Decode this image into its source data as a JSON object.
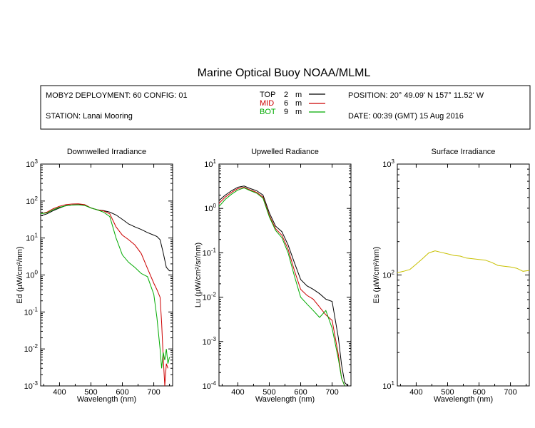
{
  "title": "Marine Optical Buoy NOAA/MLML",
  "info": {
    "deployment": "MOBY2 DEPLOYMENT: 60 CONFIG: 01",
    "station": "STATION: Lanai Mooring",
    "position": "POSITION: 20° 49.09' N   157° 11.52' W",
    "date": "DATE: 00:39 (GMT) 15 Aug 2016",
    "depths": [
      {
        "name": "TOP",
        "depth": "2",
        "unit": "m",
        "color": "#000000"
      },
      {
        "name": "MID",
        "depth": "6",
        "unit": "m",
        "color": "#cc0000"
      },
      {
        "name": "BOT",
        "depth": "9",
        "unit": "m",
        "color": "#00aa00"
      }
    ]
  },
  "chart_data": [
    {
      "type": "line",
      "title": "Downwelled Irradiance",
      "xlabel": "Wavelength (nm)",
      "ylabel_main": "Ed",
      "ylabel_unit": "(µW/cm²/nm)",
      "scale": "log",
      "xlim": [
        340,
        760
      ],
      "ylim_exp": [
        -3,
        3
      ],
      "xticks": [
        400,
        500,
        600,
        700
      ],
      "series": [
        {
          "name": "TOP",
          "color": "#000000",
          "x": [
            340,
            360,
            380,
            400,
            420,
            440,
            460,
            480,
            500,
            520,
            540,
            560,
            580,
            600,
            620,
            640,
            660,
            680,
            700,
            710,
            720,
            730,
            740,
            750,
            760
          ],
          "y": [
            40,
            45,
            55,
            65,
            75,
            78,
            80,
            78,
            65,
            58,
            55,
            50,
            42,
            32,
            24,
            20,
            17,
            14,
            12,
            11,
            9,
            4,
            1.6,
            1.3,
            1.3
          ]
        },
        {
          "name": "MID",
          "color": "#cc0000",
          "x": [
            340,
            360,
            380,
            400,
            420,
            440,
            460,
            480,
            500,
            520,
            540,
            560,
            580,
            600,
            620,
            640,
            660,
            680,
            700,
            710,
            720,
            725,
            730,
            735,
            740,
            745
          ],
          "y": [
            45,
            50,
            62,
            72,
            80,
            83,
            84,
            80,
            65,
            58,
            54,
            45,
            20,
            12,
            9,
            6.5,
            3.8,
            1.5,
            0.6,
            0.4,
            0.25,
            0.05,
            0.006,
            0.001,
            0.004,
            0.003
          ]
        },
        {
          "name": "BOT",
          "color": "#00aa00",
          "x": [
            340,
            360,
            380,
            400,
            420,
            440,
            460,
            480,
            500,
            520,
            540,
            560,
            580,
            600,
            620,
            640,
            660,
            680,
            700,
            710,
            720,
            725,
            730,
            735,
            740,
            745,
            750
          ],
          "y": [
            45,
            48,
            58,
            68,
            74,
            78,
            79,
            76,
            65,
            58,
            50,
            38,
            10,
            3.5,
            2.2,
            1.6,
            1.1,
            0.9,
            0.3,
            0.07,
            0.01,
            0.003,
            0.008,
            0.005,
            0.01,
            0.004,
            0.006
          ]
        }
      ]
    },
    {
      "type": "line",
      "title": "Upwelled Radiance",
      "xlabel": "Wavelength (nm)",
      "ylabel_main": "Lu",
      "ylabel_unit": "(µW/cm²/sr/nm)",
      "scale": "log",
      "xlim": [
        340,
        760
      ],
      "ylim_exp": [
        -4,
        1
      ],
      "xticks": [
        400,
        500,
        600,
        700
      ],
      "series": [
        {
          "name": "TOP",
          "color": "#000000",
          "x": [
            340,
            360,
            380,
            400,
            420,
            440,
            460,
            480,
            500,
            520,
            540,
            560,
            580,
            600,
            620,
            640,
            660,
            680,
            700,
            720,
            730,
            740,
            750
          ],
          "y": [
            1.5,
            2.0,
            2.5,
            3.0,
            3.2,
            2.8,
            2.5,
            2.0,
            0.8,
            0.4,
            0.3,
            0.15,
            0.06,
            0.025,
            0.018,
            0.015,
            0.012,
            0.009,
            0.008,
            0.0012,
            0.0003,
            0.00012,
            0.0001
          ]
        },
        {
          "name": "MID",
          "color": "#cc0000",
          "x": [
            340,
            360,
            380,
            400,
            420,
            440,
            460,
            480,
            500,
            520,
            540,
            560,
            580,
            600,
            620,
            640,
            660,
            680,
            700,
            720,
            730,
            740
          ],
          "y": [
            1.3,
            1.8,
            2.3,
            2.8,
            3.0,
            2.6,
            2.3,
            1.8,
            0.7,
            0.35,
            0.25,
            0.12,
            0.04,
            0.015,
            0.011,
            0.009,
            0.006,
            0.004,
            0.003,
            0.0005,
            0.00015,
            0.0001
          ]
        },
        {
          "name": "BOT",
          "color": "#00aa00",
          "x": [
            340,
            360,
            380,
            400,
            420,
            440,
            460,
            480,
            500,
            520,
            540,
            560,
            580,
            600,
            620,
            640,
            660,
            680,
            700,
            720,
            730,
            740
          ],
          "y": [
            1.1,
            1.6,
            2.1,
            2.6,
            2.9,
            2.5,
            2.2,
            1.7,
            0.65,
            0.32,
            0.22,
            0.1,
            0.03,
            0.01,
            0.007,
            0.005,
            0.0035,
            0.005,
            0.002,
            0.0004,
            0.00015,
            0.0001
          ]
        }
      ]
    },
    {
      "type": "line",
      "title": "Surface Irradiance",
      "xlabel": "Wavelength (nm)",
      "ylabel_main": "Es",
      "ylabel_unit": "(µW/cm²/nm)",
      "scale": "log",
      "xlim": [
        340,
        760
      ],
      "ylim_exp": [
        1,
        3
      ],
      "xticks": [
        400,
        500,
        600,
        700
      ],
      "series": [
        {
          "name": "Es",
          "color": "#c8c000",
          "x": [
            340,
            360,
            380,
            400,
            420,
            440,
            460,
            480,
            500,
            520,
            540,
            560,
            580,
            600,
            620,
            640,
            660,
            680,
            700,
            720,
            740,
            760
          ],
          "y": [
            105,
            108,
            112,
            125,
            140,
            158,
            165,
            160,
            155,
            150,
            148,
            142,
            140,
            138,
            136,
            130,
            122,
            120,
            118,
            115,
            108,
            110
          ]
        }
      ]
    }
  ]
}
